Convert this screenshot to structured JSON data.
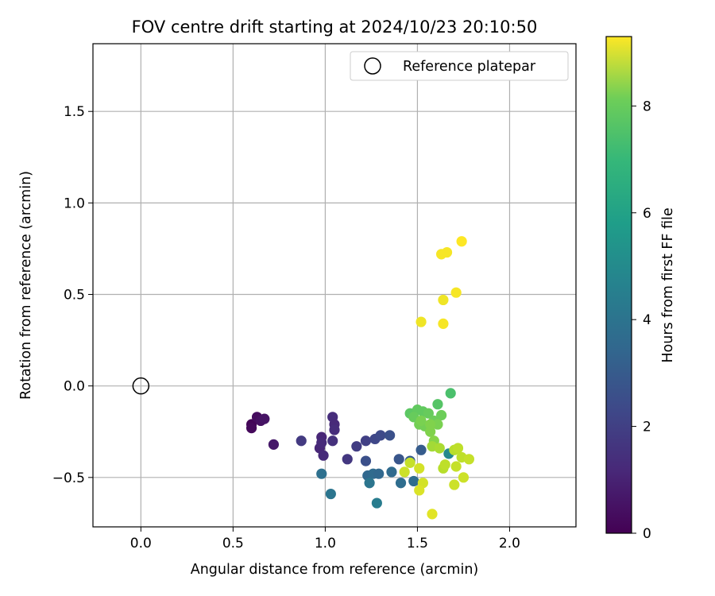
{
  "chart_data": {
    "type": "scatter",
    "title": "FOV centre drift starting at 2024/10/23 20:10:50",
    "xlabel": "Angular distance from reference (arcmin)",
    "ylabel": "Rotation from reference (arcmin)",
    "xlim": [
      -0.26,
      2.36
    ],
    "ylim": [
      -0.77,
      1.87
    ],
    "xticks": [
      0.0,
      0.5,
      1.0,
      1.5,
      2.0
    ],
    "xtick_labels": [
      "0.0",
      "0.5",
      "1.0",
      "1.5",
      "2.0"
    ],
    "yticks": [
      -0.5,
      0.0,
      0.5,
      1.0,
      1.5
    ],
    "ytick_labels": [
      "−0.5",
      "0.0",
      "0.5",
      "1.0",
      "1.5"
    ],
    "grid": true,
    "legend": {
      "position": "top-right",
      "entries": [
        "Reference platepar"
      ]
    },
    "reference_point": {
      "x": 0.0,
      "y": 0.0
    },
    "colorbar": {
      "label": "Hours from first FF file",
      "colormap": "viridis",
      "range": [
        0,
        9.3
      ],
      "ticks": [
        0,
        2,
        4,
        6,
        8
      ],
      "tick_labels": [
        "0",
        "2",
        "4",
        "6",
        "8"
      ]
    },
    "series": [
      {
        "points": [
          {
            "x": 0.6,
            "y": -0.21,
            "c": 0.1
          },
          {
            "x": 0.6,
            "y": -0.23,
            "c": 0.2
          },
          {
            "x": 0.63,
            "y": -0.17,
            "c": 0.3
          },
          {
            "x": 0.65,
            "y": -0.19,
            "c": 0.4
          },
          {
            "x": 0.67,
            "y": -0.18,
            "c": 0.5
          },
          {
            "x": 0.72,
            "y": -0.32,
            "c": 0.6
          },
          {
            "x": 0.87,
            "y": -0.3,
            "c": 1.6
          },
          {
            "x": 0.97,
            "y": -0.34,
            "c": 1.0
          },
          {
            "x": 0.98,
            "y": -0.28,
            "c": 1.0
          },
          {
            "x": 0.98,
            "y": -0.31,
            "c": 1.1
          },
          {
            "x": 0.99,
            "y": -0.38,
            "c": 1.1
          },
          {
            "x": 1.04,
            "y": -0.17,
            "c": 1.2
          },
          {
            "x": 1.05,
            "y": -0.21,
            "c": 1.1
          },
          {
            "x": 1.05,
            "y": -0.24,
            "c": 1.2
          },
          {
            "x": 1.04,
            "y": -0.3,
            "c": 1.3
          },
          {
            "x": 1.12,
            "y": -0.4,
            "c": 1.5
          },
          {
            "x": 1.17,
            "y": -0.33,
            "c": 1.7
          },
          {
            "x": 1.22,
            "y": -0.3,
            "c": 1.8
          },
          {
            "x": 1.27,
            "y": -0.29,
            "c": 2.0
          },
          {
            "x": 1.3,
            "y": -0.27,
            "c": 2.1
          },
          {
            "x": 1.35,
            "y": -0.27,
            "c": 2.3
          },
          {
            "x": 1.22,
            "y": -0.41,
            "c": 2.3
          },
          {
            "x": 1.4,
            "y": -0.4,
            "c": 2.5
          },
          {
            "x": 1.46,
            "y": -0.41,
            "c": 2.7
          },
          {
            "x": 1.52,
            "y": -0.35,
            "c": 2.7
          },
          {
            "x": 1.23,
            "y": -0.49,
            "c": 3.1
          },
          {
            "x": 1.26,
            "y": -0.48,
            "c": 3.2
          },
          {
            "x": 1.29,
            "y": -0.48,
            "c": 3.1
          },
          {
            "x": 1.36,
            "y": -0.47,
            "c": 3.2
          },
          {
            "x": 1.41,
            "y": -0.53,
            "c": 3.3
          },
          {
            "x": 1.48,
            "y": -0.52,
            "c": 3.3
          },
          {
            "x": 0.98,
            "y": -0.48,
            "c": 3.4
          },
          {
            "x": 1.24,
            "y": -0.53,
            "c": 3.6
          },
          {
            "x": 1.03,
            "y": -0.59,
            "c": 3.6
          },
          {
            "x": 1.28,
            "y": -0.64,
            "c": 3.9
          },
          {
            "x": 1.67,
            "y": -0.37,
            "c": 4.4
          },
          {
            "x": 1.68,
            "y": -0.04,
            "c": 6.6
          },
          {
            "x": 1.61,
            "y": -0.1,
            "c": 6.8
          },
          {
            "x": 1.46,
            "y": -0.15,
            "c": 6.9
          },
          {
            "x": 1.5,
            "y": -0.13,
            "c": 7.0
          },
          {
            "x": 1.53,
            "y": -0.14,
            "c": 7.0
          },
          {
            "x": 1.48,
            "y": -0.17,
            "c": 7.1
          },
          {
            "x": 1.56,
            "y": -0.15,
            "c": 7.1
          },
          {
            "x": 1.59,
            "y": -0.19,
            "c": 7.2
          },
          {
            "x": 1.63,
            "y": -0.16,
            "c": 7.2
          },
          {
            "x": 1.51,
            "y": -0.21,
            "c": 7.3
          },
          {
            "x": 1.54,
            "y": -0.22,
            "c": 7.3
          },
          {
            "x": 1.61,
            "y": -0.21,
            "c": 7.4
          },
          {
            "x": 1.57,
            "y": -0.25,
            "c": 7.5
          },
          {
            "x": 1.52,
            "y": -0.19,
            "c": 7.4
          },
          {
            "x": 1.57,
            "y": -0.21,
            "c": 7.5
          },
          {
            "x": 1.59,
            "y": -0.3,
            "c": 7.6
          },
          {
            "x": 1.58,
            "y": -0.33,
            "c": 8.0
          },
          {
            "x": 1.62,
            "y": -0.34,
            "c": 8.1
          },
          {
            "x": 1.7,
            "y": -0.35,
            "c": 8.3
          },
          {
            "x": 1.72,
            "y": -0.34,
            "c": 8.4
          },
          {
            "x": 1.74,
            "y": -0.39,
            "c": 8.4
          },
          {
            "x": 1.78,
            "y": -0.4,
            "c": 8.5
          },
          {
            "x": 1.64,
            "y": -0.45,
            "c": 8.3
          },
          {
            "x": 1.65,
            "y": -0.43,
            "c": 8.4
          },
          {
            "x": 1.71,
            "y": -0.44,
            "c": 8.5
          },
          {
            "x": 1.75,
            "y": -0.5,
            "c": 8.6
          },
          {
            "x": 1.7,
            "y": -0.54,
            "c": 8.6
          },
          {
            "x": 1.46,
            "y": -0.42,
            "c": 8.5
          },
          {
            "x": 1.43,
            "y": -0.47,
            "c": 8.6
          },
          {
            "x": 1.51,
            "y": -0.45,
            "c": 8.7
          },
          {
            "x": 1.53,
            "y": -0.53,
            "c": 8.7
          },
          {
            "x": 1.51,
            "y": -0.57,
            "c": 8.8
          },
          {
            "x": 1.58,
            "y": -0.7,
            "c": 8.9
          },
          {
            "x": 1.52,
            "y": 0.35,
            "c": 9.1
          },
          {
            "x": 1.64,
            "y": 0.34,
            "c": 9.2
          },
          {
            "x": 1.64,
            "y": 0.47,
            "c": 9.1
          },
          {
            "x": 1.71,
            "y": 0.51,
            "c": 9.2
          },
          {
            "x": 1.63,
            "y": 0.72,
            "c": 9.2
          },
          {
            "x": 1.66,
            "y": 0.73,
            "c": 9.2
          },
          {
            "x": 1.74,
            "y": 0.79,
            "c": 9.3
          }
        ]
      }
    ]
  }
}
